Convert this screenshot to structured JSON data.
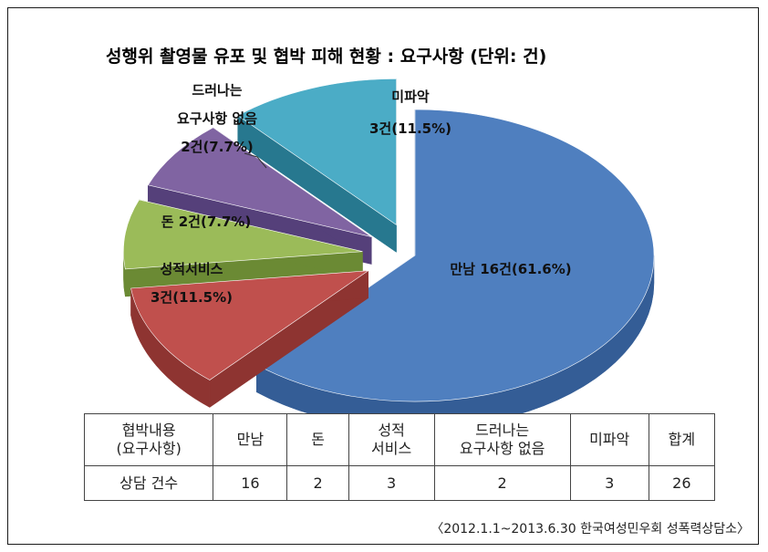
{
  "chart_data": {
    "type": "pie",
    "title": "성행위 촬영물 유포 및 협박 피해 현황 : 요구사항 (단위: 건)",
    "slices": [
      {
        "name": "만남",
        "value": 16,
        "percent": 61.6,
        "label_lines": [
          "만남 16건(61.6%)"
        ],
        "color": "#4f7fbf",
        "side": "#345d96",
        "exploded": false
      },
      {
        "name": "성적서비스",
        "value": 3,
        "percent": 11.5,
        "label_lines": [
          "성적서비스",
          "3건(11.5%)"
        ],
        "color": "#c0504d",
        "side": "#8e3431",
        "exploded": true
      },
      {
        "name": "돈",
        "value": 2,
        "percent": 7.7,
        "label_lines": [
          "돈 2건(7.7%)"
        ],
        "color": "#9bbb59",
        "side": "#6b8a34",
        "exploded": true
      },
      {
        "name": "드러나는 요구사항 없음",
        "value": 2,
        "percent": 7.7,
        "label_lines": [
          "드러나는",
          "요구사항 없음",
          "2건(7.7%)"
        ],
        "color": "#8064a2",
        "side": "#55407a",
        "exploded": true
      },
      {
        "name": "미파악",
        "value": 3,
        "percent": 11.5,
        "label_lines": [
          "미파악",
          "3건(11.5%)"
        ],
        "color": "#4bacc6",
        "side": "#27788f",
        "exploded": true
      }
    ]
  },
  "table": {
    "header_label": [
      "협박내용",
      "(요구사항)"
    ],
    "columns": [
      [
        "만남"
      ],
      [
        "돈"
      ],
      [
        "성적",
        "서비스"
      ],
      [
        "드러나는",
        "요구사항 없음"
      ],
      [
        "미파악"
      ],
      [
        "합계"
      ]
    ],
    "row_label": "상담 건수",
    "values": [
      "16",
      "2",
      "3",
      "2",
      "3",
      "26"
    ]
  },
  "source": "〈2012.1.1~2013.6.30 한국여성민우회 성폭력상담소〉"
}
